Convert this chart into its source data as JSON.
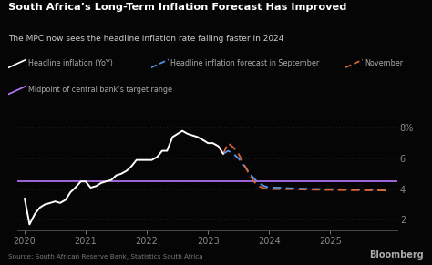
{
  "title": "South Africa’s Long-Term Inflation Forecast Has Improved",
  "subtitle": "The MPC now sees the headline inflation rate falling faster in 2024",
  "source": "Source: South African Reserve Bank, Statistics South Africa",
  "background_color": "#050505",
  "title_color": "#ffffff",
  "subtitle_color": "#cccccc",
  "axis_color": "#888888",
  "grid_color": "#2a2a2a",
  "yticks": [
    2,
    4,
    6,
    8
  ],
  "xlim": [
    2019.88,
    2026.1
  ],
  "ylim": [
    1.3,
    8.9
  ],
  "midpoint_value": 4.5,
  "headline_x": [
    2020.0,
    2020.08,
    2020.17,
    2020.25,
    2020.33,
    2020.42,
    2020.5,
    2020.58,
    2020.67,
    2020.75,
    2020.83,
    2020.92,
    2021.0,
    2021.08,
    2021.17,
    2021.25,
    2021.33,
    2021.42,
    2021.5,
    2021.58,
    2021.67,
    2021.75,
    2021.83,
    2021.92,
    2022.0,
    2022.08,
    2022.17,
    2022.25,
    2022.33,
    2022.42,
    2022.5,
    2022.58,
    2022.67,
    2022.75,
    2022.83,
    2022.92,
    2023.0,
    2023.08,
    2023.17,
    2023.25
  ],
  "headline_y": [
    3.4,
    1.7,
    2.4,
    2.8,
    3.0,
    3.1,
    3.2,
    3.1,
    3.3,
    3.8,
    4.1,
    4.5,
    4.5,
    4.1,
    4.2,
    4.4,
    4.5,
    4.6,
    4.9,
    5.0,
    5.2,
    5.5,
    5.9,
    5.9,
    5.9,
    5.9,
    6.1,
    6.5,
    6.5,
    7.4,
    7.6,
    7.8,
    7.6,
    7.5,
    7.4,
    7.2,
    7.0,
    7.0,
    6.8,
    6.3
  ],
  "sept_forecast_x": [
    2023.25,
    2023.33,
    2023.42,
    2023.5,
    2023.58,
    2023.67,
    2023.75,
    2023.83,
    2023.92,
    2024.0,
    2024.08,
    2024.17,
    2024.25,
    2024.33,
    2024.42,
    2024.5,
    2024.58,
    2024.67,
    2024.75,
    2024.83,
    2024.92,
    2025.0,
    2025.17,
    2025.33,
    2025.5,
    2025.67,
    2025.83,
    2025.92
  ],
  "sept_forecast_y": [
    6.3,
    6.5,
    6.3,
    6.0,
    5.6,
    5.1,
    4.7,
    4.4,
    4.2,
    4.1,
    4.1,
    4.1,
    4.08,
    4.06,
    4.05,
    4.04,
    4.03,
    4.02,
    4.01,
    4.01,
    4.0,
    4.0,
    3.99,
    3.98,
    3.97,
    3.97,
    3.96,
    3.96
  ],
  "nov_forecast_x": [
    2023.25,
    2023.33,
    2023.42,
    2023.5,
    2023.58,
    2023.67,
    2023.75,
    2023.83,
    2023.92,
    2024.0,
    2024.08,
    2024.17,
    2024.25,
    2024.33,
    2024.42,
    2024.5,
    2024.58,
    2024.67,
    2024.75,
    2024.83,
    2024.92,
    2025.0,
    2025.17,
    2025.33,
    2025.5,
    2025.67,
    2025.83,
    2025.92
  ],
  "nov_forecast_y": [
    6.3,
    7.0,
    6.7,
    6.3,
    5.7,
    5.0,
    4.5,
    4.2,
    4.05,
    4.0,
    4.0,
    4.0,
    4.0,
    4.0,
    3.99,
    3.98,
    3.97,
    3.97,
    3.96,
    3.96,
    3.95,
    3.95,
    3.94,
    3.93,
    3.93,
    3.92,
    3.92,
    3.91
  ],
  "headline_color": "#ffffff",
  "sept_color": "#5599ee",
  "nov_color": "#dd6633",
  "midpoint_color": "#bb77ff",
  "legend_entries": [
    {
      "label": "Headline inflation (YoY)",
      "color": "#ffffff",
      "style": "solid"
    },
    {
      "label": "Headline inflation forecast in September",
      "color": "#5599ee",
      "style": "dashed"
    },
    {
      "label": "November",
      "color": "#dd6633",
      "style": "dashed"
    },
    {
      "label": "Midpoint of central bank’s target range",
      "color": "#bb77ff",
      "style": "solid"
    }
  ]
}
